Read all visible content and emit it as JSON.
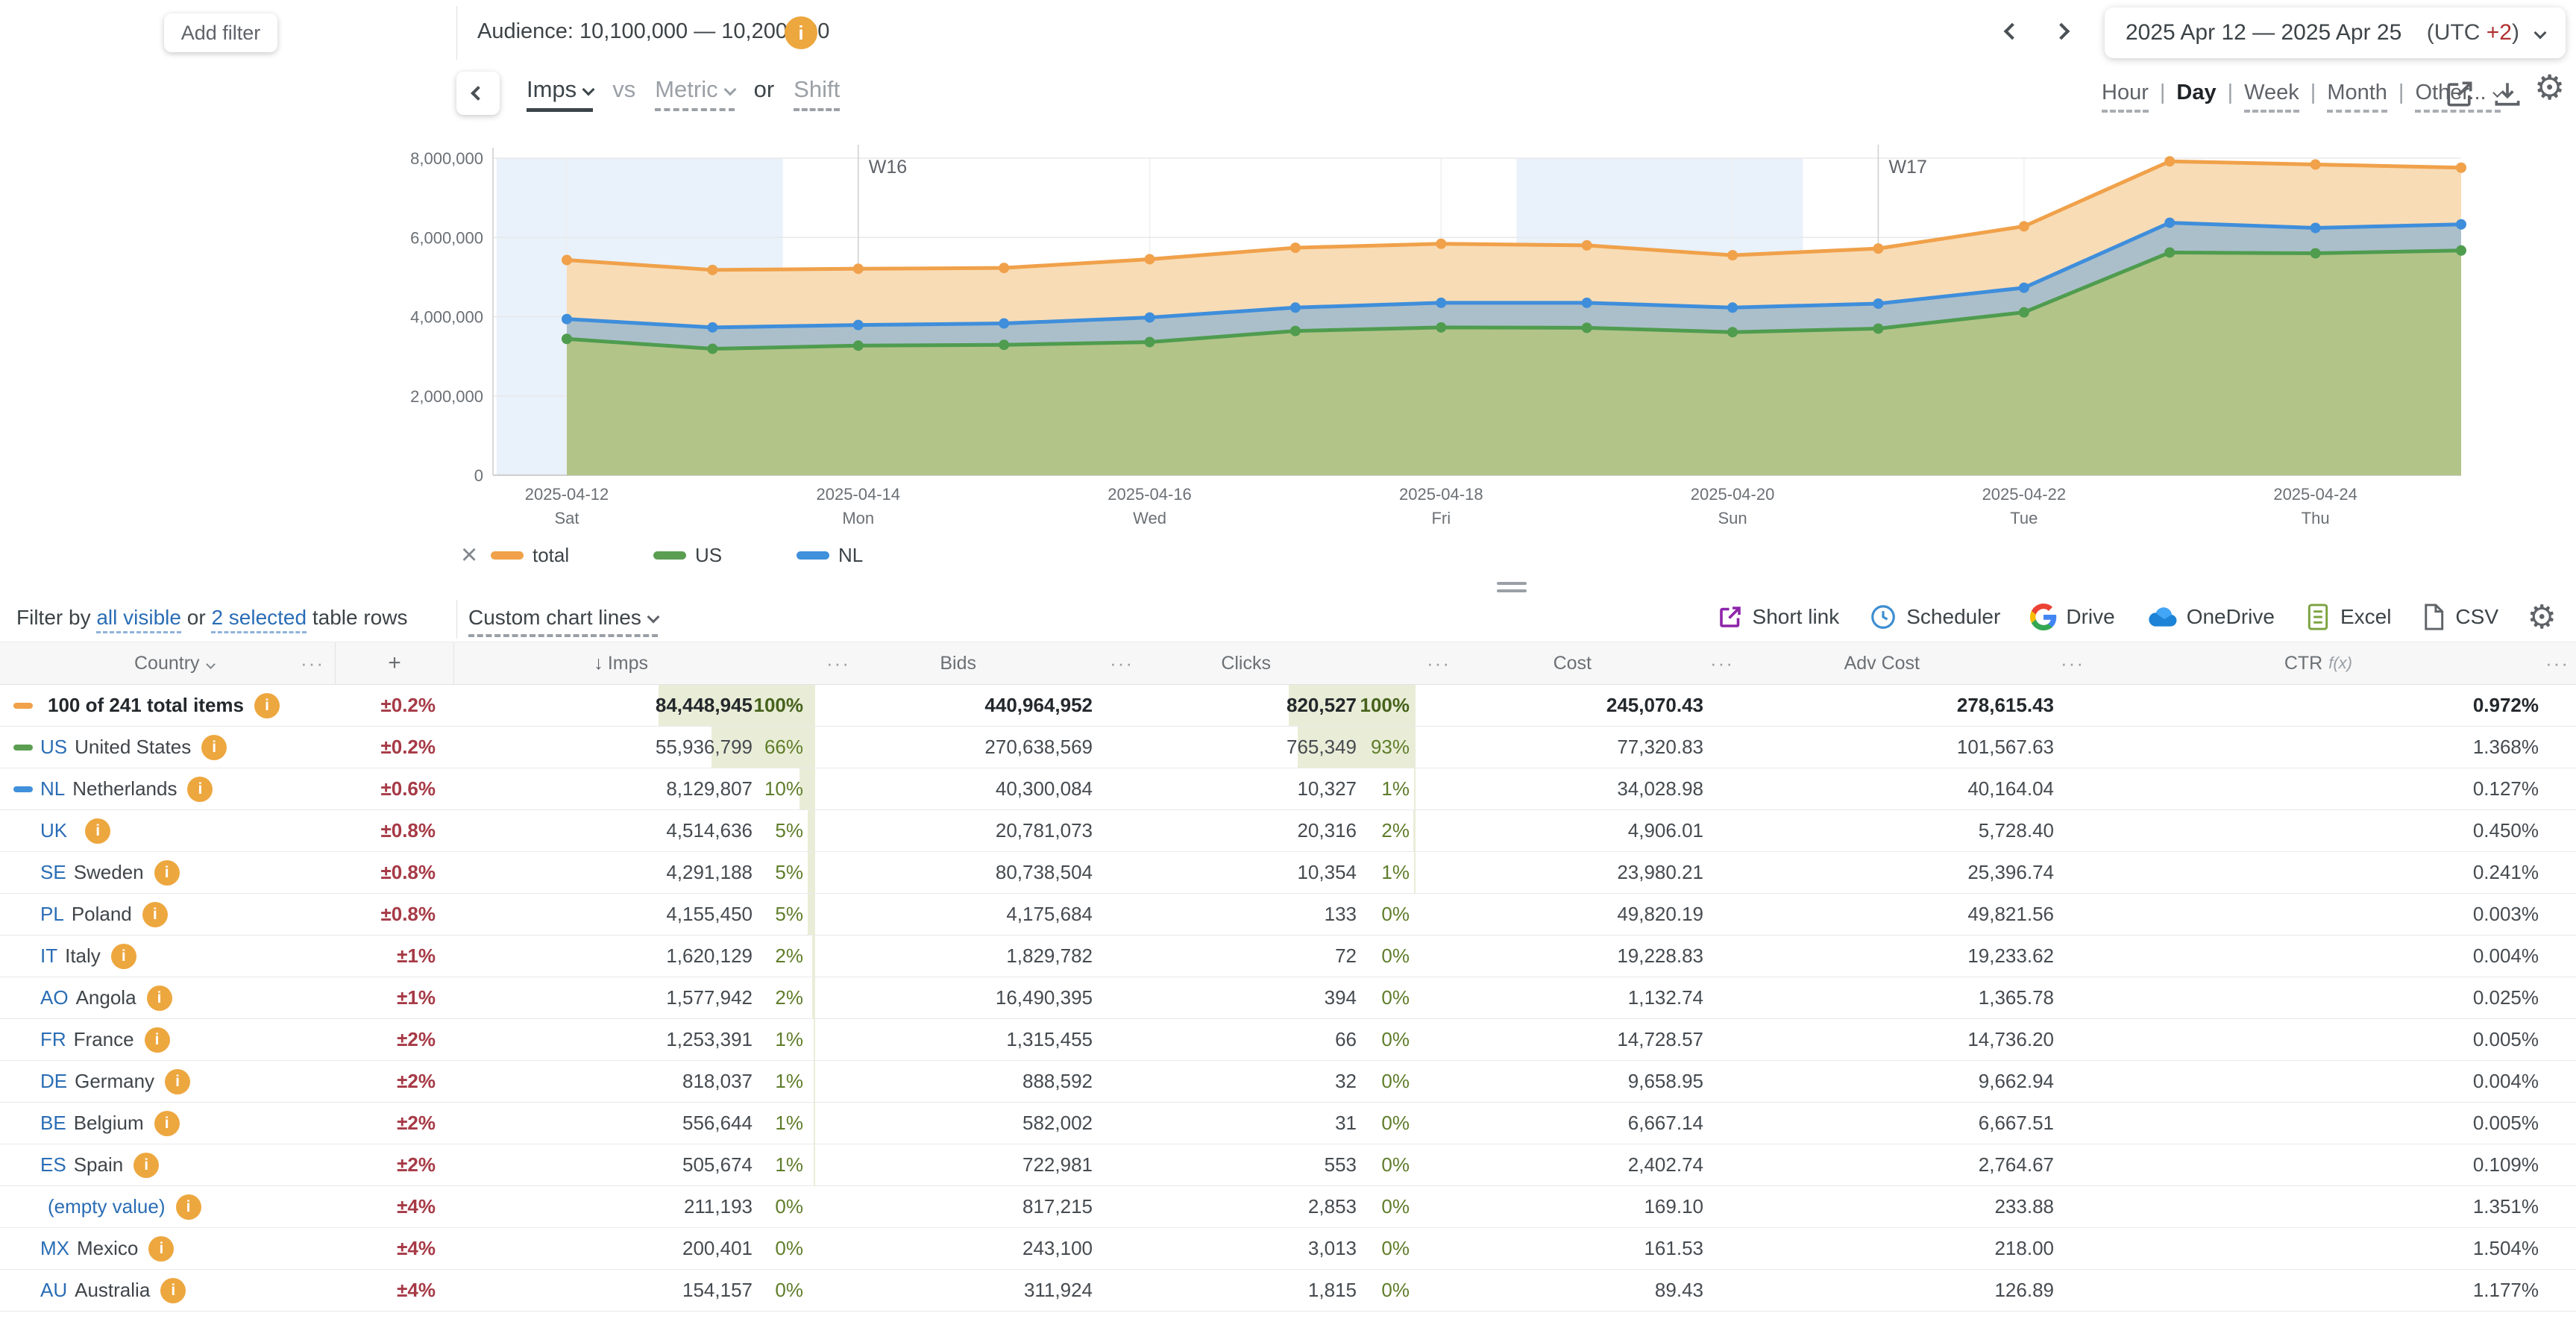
{
  "header": {
    "add_filter": "Add filter",
    "audience_label": "Audience: 10,100,000 — 10,200,000",
    "date_range": "2025 Apr 12 — 2025 Apr 25",
    "utc_prefix": "(UTC ",
    "utc_offset": "+2",
    "utc_suffix": ")"
  },
  "chart_controls": {
    "primary_metric": "Imps",
    "vs_label": "vs",
    "secondary_metric": "Metric",
    "or_label": "or",
    "shift_label": "Shift",
    "separator": "|",
    "granularity": [
      "Hour",
      "Day",
      "Week",
      "Month",
      "Other..."
    ],
    "granularity_active": "Day"
  },
  "chart_data": {
    "type": "area",
    "stacked_visual": true,
    "note": "Lines drawn at cumulative stacked positions: US, then NL on top of US, then total on top",
    "x": [
      "2025-04-12",
      "2025-04-13",
      "2025-04-14",
      "2025-04-15",
      "2025-04-16",
      "2025-04-17",
      "2025-04-18",
      "2025-04-19",
      "2025-04-20",
      "2025-04-21",
      "2025-04-22",
      "2025-04-23",
      "2025-04-24",
      "2025-04-25"
    ],
    "series": [
      {
        "name": "US",
        "color": "#4f9c4f",
        "fill": "#b3c489",
        "values": [
          3440000,
          3190000,
          3270000,
          3290000,
          3360000,
          3640000,
          3730000,
          3720000,
          3610000,
          3700000,
          4110000,
          5620000,
          5600000,
          5670000
        ]
      },
      {
        "name": "NL",
        "color": "#3f8edb",
        "fill": "#abbfca",
        "values": [
          3940000,
          3730000,
          3790000,
          3830000,
          3980000,
          4230000,
          4350000,
          4350000,
          4230000,
          4330000,
          4730000,
          6370000,
          6240000,
          6330000
        ]
      },
      {
        "name": "total",
        "color": "#f0a14a",
        "fill": "#f8dcb6",
        "values": [
          5430000,
          5180000,
          5210000,
          5230000,
          5450000,
          5740000,
          5840000,
          5800000,
          5550000,
          5720000,
          6280000,
          7920000,
          7840000,
          7760000
        ]
      }
    ],
    "ylim": [
      0,
      8000000
    ],
    "yticks": [
      {
        "v": 0,
        "label": "0"
      },
      {
        "v": 2000000,
        "label": "2,000,000"
      },
      {
        "v": 4000000,
        "label": "4,000,000"
      },
      {
        "v": 6000000,
        "label": "6,000,000"
      },
      {
        "v": 8000000,
        "label": "8,000,000"
      }
    ],
    "x_ticks": [
      {
        "i": 0,
        "date": "2025-04-12",
        "day": "Sat"
      },
      {
        "i": 2,
        "date": "2025-04-14",
        "day": "Mon"
      },
      {
        "i": 4,
        "date": "2025-04-16",
        "day": "Wed"
      },
      {
        "i": 6,
        "date": "2025-04-18",
        "day": "Fri"
      },
      {
        "i": 8,
        "date": "2025-04-20",
        "day": "Sun"
      },
      {
        "i": 10,
        "date": "2025-04-22",
        "day": "Tue"
      },
      {
        "i": 12,
        "date": "2025-04-24",
        "day": "Thu"
      }
    ],
    "week_markers": [
      {
        "i": 2,
        "label": "W16"
      },
      {
        "i": 9,
        "label": "W17"
      }
    ],
    "weekend_bands": [
      [
        0,
        1
      ],
      [
        7,
        8
      ]
    ],
    "grid": true,
    "legend_position": "bottom"
  },
  "legend": {
    "close": "×",
    "items": [
      {
        "label": "total",
        "color": "#f0a14a"
      },
      {
        "label": "US",
        "color": "#5b9e52"
      },
      {
        "label": "NL",
        "color": "#4090db"
      }
    ]
  },
  "toolbar": {
    "filter_prefix": "Filter by",
    "filter_link_all": "all visible",
    "filter_or": "or",
    "filter_link_selected": "2 selected",
    "filter_suffix": "table rows",
    "custom_chart_lines": "Custom chart lines",
    "exports": [
      "Short link",
      "Scheduler",
      "Drive",
      "OneDrive",
      "Excel",
      "CSV"
    ]
  },
  "table": {
    "header": {
      "country": "Country",
      "plus": "+",
      "imps": "Imps",
      "sort_arrow": "↓",
      "bids": "Bids",
      "clicks": "Clicks",
      "cost": "Cost",
      "adv_cost": "Adv Cost",
      "ctr": "CTR",
      "ctr_fx": "f(x)",
      "menu": "···"
    },
    "rows": [
      {
        "dash": "#f0a14a",
        "code": "",
        "name": "100 of 241 total items",
        "info": true,
        "bold": true,
        "pm": "±0.2%",
        "imps": "84,448,945",
        "ipct": "100%",
        "bids": "440,964,952",
        "clicks": "820,527",
        "cpct": "100%",
        "cost": "245,070.43",
        "adv": "278,615.43",
        "ctr": "0.972%"
      },
      {
        "dash": "#5b9e52",
        "code": "US",
        "name": "United States",
        "pm": "±0.2%",
        "imps": "55,936,799",
        "ipct": "66%",
        "bids": "270,638,569",
        "clicks": "765,349",
        "cpct": "93%",
        "cost": "77,320.83",
        "adv": "101,567.63",
        "ctr": "1.368%"
      },
      {
        "dash": "#4090db",
        "code": "NL",
        "name": "Netherlands",
        "pm": "±0.6%",
        "imps": "8,129,807",
        "ipct": "10%",
        "bids": "40,300,084",
        "clicks": "10,327",
        "cpct": "1%",
        "cost": "34,028.98",
        "adv": "40,164.04",
        "ctr": "0.127%"
      },
      {
        "code": "UK",
        "name": "",
        "pm": "±0.8%",
        "imps": "4,514,636",
        "ipct": "5%",
        "bids": "20,781,073",
        "clicks": "20,316",
        "cpct": "2%",
        "cost": "4,906.01",
        "adv": "5,728.40",
        "ctr": "0.450%"
      },
      {
        "code": "SE",
        "name": "Sweden",
        "pm": "±0.8%",
        "imps": "4,291,188",
        "ipct": "5%",
        "bids": "80,738,504",
        "clicks": "10,354",
        "cpct": "1%",
        "cost": "23,980.21",
        "adv": "25,396.74",
        "ctr": "0.241%"
      },
      {
        "code": "PL",
        "name": "Poland",
        "pm": "±0.8%",
        "imps": "4,155,450",
        "ipct": "5%",
        "bids": "4,175,684",
        "clicks": "133",
        "cpct": "0%",
        "cost": "49,820.19",
        "adv": "49,821.56",
        "ctr": "0.003%"
      },
      {
        "code": "IT",
        "name": "Italy",
        "pm": "±1%",
        "imps": "1,620,129",
        "ipct": "2%",
        "bids": "1,829,782",
        "clicks": "72",
        "cpct": "0%",
        "cost": "19,228.83",
        "adv": "19,233.62",
        "ctr": "0.004%"
      },
      {
        "code": "AO",
        "name": "Angola",
        "pm": "±1%",
        "imps": "1,577,942",
        "ipct": "2%",
        "bids": "16,490,395",
        "clicks": "394",
        "cpct": "0%",
        "cost": "1,132.74",
        "adv": "1,365.78",
        "ctr": "0.025%"
      },
      {
        "code": "FR",
        "name": "France",
        "pm": "±2%",
        "imps": "1,253,391",
        "ipct": "1%",
        "bids": "1,315,455",
        "clicks": "66",
        "cpct": "0%",
        "cost": "14,728.57",
        "adv": "14,736.20",
        "ctr": "0.005%"
      },
      {
        "code": "DE",
        "name": "Germany",
        "pm": "±2%",
        "imps": "818,037",
        "ipct": "1%",
        "bids": "888,592",
        "clicks": "32",
        "cpct": "0%",
        "cost": "9,658.95",
        "adv": "9,662.94",
        "ctr": "0.004%"
      },
      {
        "code": "BE",
        "name": "Belgium",
        "pm": "±2%",
        "imps": "556,644",
        "ipct": "1%",
        "bids": "582,002",
        "clicks": "31",
        "cpct": "0%",
        "cost": "6,667.14",
        "adv": "6,667.51",
        "ctr": "0.005%"
      },
      {
        "code": "ES",
        "name": "Spain",
        "pm": "±2%",
        "imps": "505,674",
        "ipct": "1%",
        "bids": "722,981",
        "clicks": "553",
        "cpct": "0%",
        "cost": "2,402.74",
        "adv": "2,764.67",
        "ctr": "0.109%"
      },
      {
        "code": "",
        "name": "(empty value)",
        "link_name": true,
        "pm": "±4%",
        "imps": "211,193",
        "ipct": "0%",
        "bids": "817,215",
        "clicks": "2,853",
        "cpct": "0%",
        "cost": "169.10",
        "adv": "233.88",
        "ctr": "1.351%"
      },
      {
        "code": "MX",
        "name": "Mexico",
        "pm": "±4%",
        "imps": "200,401",
        "ipct": "0%",
        "bids": "243,100",
        "clicks": "3,013",
        "cpct": "0%",
        "cost": "161.53",
        "adv": "218.00",
        "ctr": "1.504%"
      },
      {
        "code": "AU",
        "name": "Australia",
        "pm": "±4%",
        "imps": "154,157",
        "ipct": "0%",
        "bids": "311,924",
        "clicks": "1,815",
        "cpct": "0%",
        "cost": "89.43",
        "adv": "126.89",
        "ctr": "1.177%"
      }
    ]
  }
}
